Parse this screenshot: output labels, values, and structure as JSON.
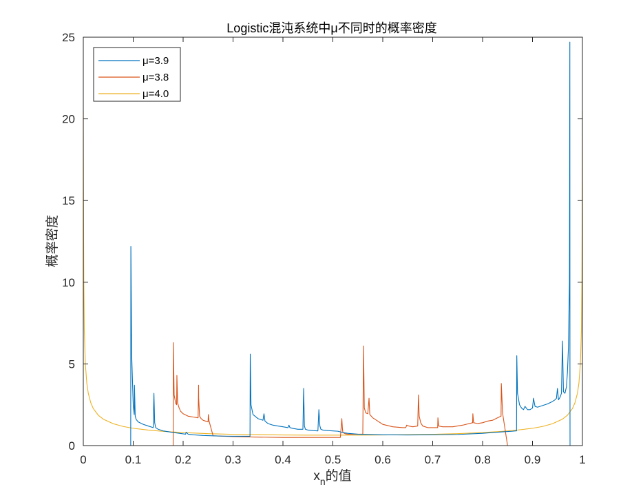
{
  "chart_data": {
    "type": "line",
    "title": "Logistic混沌系统中μ不同时的概率密度",
    "xlabel": "xn的值",
    "xlabel_main": "x",
    "xlabel_sub": "n",
    "xlabel_rest": "的值",
    "ylabel": "概率密度",
    "xlim": [
      0,
      1
    ],
    "ylim": [
      0,
      25
    ],
    "xticks": [
      0,
      0.1,
      0.2,
      0.3,
      0.4,
      0.5,
      0.6,
      0.7,
      0.8,
      0.9,
      1
    ],
    "xtick_labels": [
      "0",
      "0.1",
      "0.2",
      "0.3",
      "0.4",
      "0.5",
      "0.6",
      "0.7",
      "0.8",
      "0.9",
      "1"
    ],
    "yticks": [
      0,
      5,
      10,
      15,
      20,
      25
    ],
    "ytick_labels": [
      "0",
      "5",
      "10",
      "15",
      "20",
      "25"
    ],
    "grid": false,
    "legend_placement": "top-left",
    "legend": [
      "μ=3.9",
      "μ=3.8",
      "μ=4.0"
    ],
    "series": [
      {
        "name": "μ=3.9",
        "color": "#0072BD",
        "x": [
          0,
          0.094,
          0.095,
          0.0953,
          0.097,
          0.1,
          0.102,
          0.1025,
          0.104,
          0.106,
          0.11,
          0.12,
          0.13,
          0.14,
          0.1415,
          0.143,
          0.145,
          0.15,
          0.16,
          0.17,
          0.18,
          0.19,
          0.2,
          0.205,
          0.206,
          0.21,
          0.22,
          0.24,
          0.26,
          0.28,
          0.3,
          0.32,
          0.334,
          0.3345,
          0.336,
          0.34,
          0.35,
          0.36,
          0.362,
          0.364,
          0.37,
          0.38,
          0.39,
          0.4,
          0.41,
          0.412,
          0.414,
          0.42,
          0.43,
          0.44,
          0.4415,
          0.443,
          0.445,
          0.45,
          0.46,
          0.47,
          0.472,
          0.474,
          0.476,
          0.48,
          0.49,
          0.5,
          0.51,
          0.52,
          0.53,
          0.55,
          0.6,
          0.65,
          0.7,
          0.75,
          0.8,
          0.82,
          0.84,
          0.86,
          0.866,
          0.868,
          0.8685,
          0.87,
          0.874,
          0.878,
          0.882,
          0.885,
          0.89,
          0.895,
          0.9,
          0.902,
          0.905,
          0.91,
          0.92,
          0.93,
          0.94,
          0.945,
          0.948,
          0.95,
          0.952,
          0.955,
          0.958,
          0.96,
          0.962,
          0.965,
          0.968,
          0.97,
          0.972,
          0.974,
          0.9748,
          0.975,
          0.9752,
          0.976,
          1
        ],
        "y": [
          0,
          0,
          0,
          12.2,
          5.5,
          2.5,
          1.9,
          3.7,
          1.8,
          1.6,
          1.45,
          1.3,
          1.2,
          1.1,
          3.2,
          1.4,
          1.1,
          1.0,
          0.9,
          0.85,
          0.8,
          0.76,
          0.72,
          0.7,
          0.82,
          0.7,
          0.66,
          0.62,
          0.6,
          0.58,
          0.57,
          0.57,
          0.57,
          5.6,
          2.5,
          1.9,
          1.65,
          1.55,
          1.95,
          1.5,
          1.35,
          1.25,
          1.2,
          1.15,
          1.1,
          1.25,
          1.1,
          1.05,
          1.0,
          1.0,
          3.5,
          1.2,
          1.0,
          0.95,
          0.92,
          0.9,
          2.2,
          1.2,
          1.0,
          0.95,
          0.92,
          0.9,
          0.88,
          0.8,
          0.75,
          0.7,
          0.66,
          0.65,
          0.66,
          0.68,
          0.75,
          0.8,
          0.84,
          0.88,
          0.9,
          0.9,
          5.5,
          3.2,
          2.5,
          2.3,
          2.2,
          2.4,
          2.2,
          2.2,
          2.3,
          2.9,
          2.4,
          2.35,
          2.45,
          2.55,
          2.7,
          2.8,
          2.9,
          3.5,
          2.8,
          2.95,
          3.2,
          6.4,
          3.3,
          3.2,
          3.6,
          4.5,
          6.0,
          10.0,
          24.7,
          5.0,
          0,
          0,
          0
        ]
      },
      {
        "name": "μ=3.8",
        "color": "#D95319",
        "x": [
          0,
          0.18,
          0.1805,
          0.182,
          0.185,
          0.187,
          0.1875,
          0.189,
          0.192,
          0.195,
          0.2,
          0.21,
          0.22,
          0.23,
          0.231,
          0.2312,
          0.233,
          0.236,
          0.24,
          0.245,
          0.25,
          0.2505,
          0.252,
          0.26,
          0.3,
          0.35,
          0.4,
          0.43,
          0.45,
          0.5,
          0.515,
          0.518,
          0.519,
          0.52,
          0.525,
          0.53,
          0.545,
          0.56,
          0.5615,
          0.563,
          0.566,
          0.57,
          0.5725,
          0.574,
          0.58,
          0.59,
          0.6,
          0.62,
          0.64,
          0.646,
          0.648,
          0.652,
          0.66,
          0.67,
          0.6715,
          0.673,
          0.676,
          0.68,
          0.69,
          0.7,
          0.71,
          0.7105,
          0.712,
          0.72,
          0.74,
          0.76,
          0.78,
          0.7805,
          0.782,
          0.79,
          0.8,
          0.81,
          0.82,
          0.83,
          0.837,
          0.8375,
          0.84,
          0.85,
          0.86,
          0.87,
          0.88,
          0.89,
          0.9,
          0.91,
          0.92,
          0.925,
          0.928,
          0.9295,
          0.931,
          0.933,
          0.934,
          0.9345,
          0.936,
          0.938,
          0.94,
          0.942,
          0.944,
          0.946,
          0.948,
          0.9488,
          0.949,
          0.9492,
          0.95,
          1
        ],
        "y": [
          0,
          0,
          6.3,
          3.1,
          2.6,
          2.5,
          4.3,
          2.6,
          2.3,
          2.1,
          1.95,
          1.8,
          1.75,
          1.7,
          3.7,
          2.9,
          1.8,
          1.65,
          1.55,
          1.5,
          1.45,
          1.9,
          1.5,
          0.6,
          0.55,
          0.52,
          0.5,
          0.5,
          0.5,
          0.5,
          0.5,
          1.65,
          1.1,
          0.8,
          0.72,
          0.7,
          0.7,
          0.7,
          6.1,
          2.3,
          2.0,
          1.95,
          2.9,
          1.9,
          1.7,
          1.5,
          1.3,
          1.15,
          1.1,
          1.1,
          1.25,
          1.2,
          1.15,
          1.2,
          3.1,
          1.8,
          1.4,
          1.2,
          1.1,
          1.1,
          1.1,
          1.7,
          1.2,
          1.15,
          1.15,
          1.25,
          1.4,
          1.95,
          1.4,
          1.35,
          1.4,
          1.5,
          1.55,
          1.7,
          1.8,
          3.8,
          2.0,
          0,
          0,
          0,
          0,
          0,
          0,
          0,
          0,
          0,
          0,
          0,
          0,
          0,
          0,
          0,
          0,
          0,
          0,
          0,
          0,
          0,
          0,
          0,
          0,
          0,
          0,
          0
        ]
      },
      {
        "name": "μ=4.0",
        "color": "#EDB120",
        "x": [
          0,
          0.0005,
          0.001,
          0.002,
          0.004,
          0.007,
          0.01,
          0.015,
          0.02,
          0.03,
          0.04,
          0.06,
          0.08,
          0.1,
          0.13,
          0.16,
          0.2,
          0.25,
          0.3,
          0.35,
          0.4,
          0.45,
          0.5,
          0.55,
          0.6,
          0.65,
          0.7,
          0.75,
          0.8,
          0.84,
          0.87,
          0.9,
          0.92,
          0.94,
          0.96,
          0.97,
          0.98,
          0.985,
          0.99,
          0.993,
          0.996,
          0.998,
          0.999,
          0.9995,
          1
        ],
        "y": [
          20.5,
          14.2,
          10.1,
          7.1,
          5.05,
          3.82,
          3.2,
          2.62,
          2.27,
          1.86,
          1.62,
          1.34,
          1.17,
          1.06,
          0.95,
          0.87,
          0.8,
          0.73,
          0.69,
          0.67,
          0.65,
          0.64,
          0.64,
          0.64,
          0.65,
          0.67,
          0.69,
          0.73,
          0.8,
          0.87,
          0.95,
          1.06,
          1.17,
          1.34,
          1.62,
          1.86,
          2.27,
          2.62,
          3.2,
          3.82,
          5.05,
          7.1,
          10.1,
          14.2,
          20.5
        ]
      }
    ]
  }
}
